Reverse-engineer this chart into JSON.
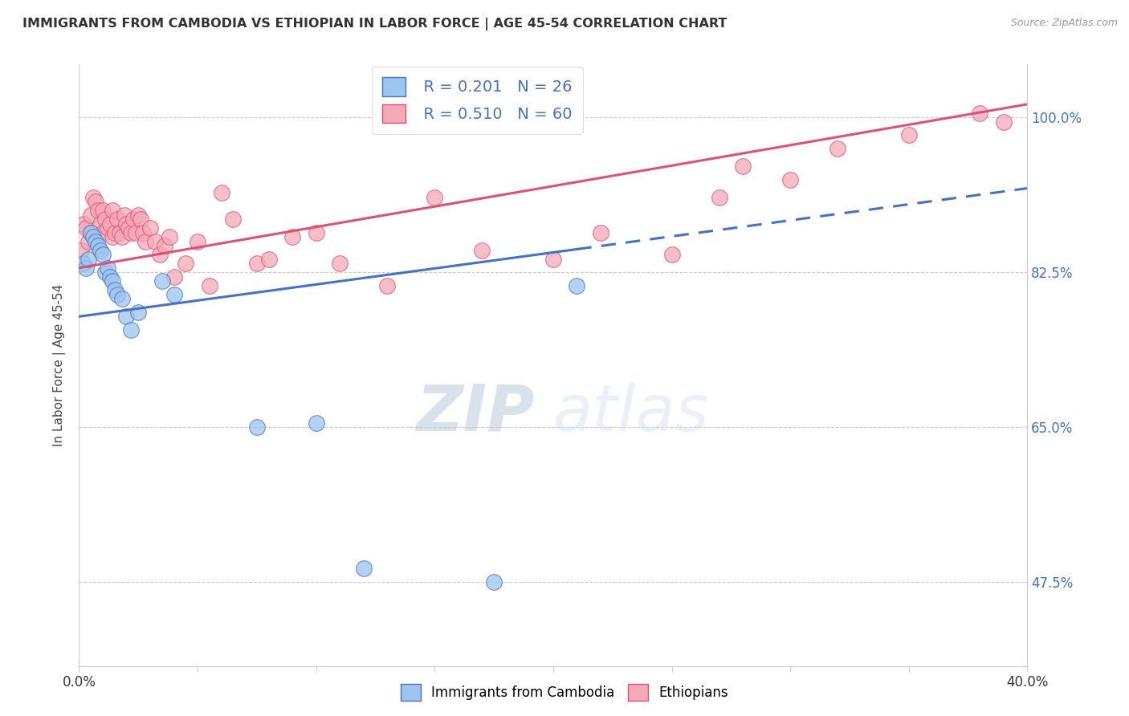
{
  "title": "IMMIGRANTS FROM CAMBODIA VS ETHIOPIAN IN LABOR FORCE | AGE 45-54 CORRELATION CHART",
  "source": "Source: ZipAtlas.com",
  "ylabel": "In Labor Force | Age 45-54",
  "yticks": [
    100.0,
    82.5,
    65.0,
    47.5
  ],
  "xlim": [
    0.0,
    40.0
  ],
  "ylim": [
    38.0,
    106.0
  ],
  "cambodia_R": 0.201,
  "cambodia_N": 26,
  "ethiopian_R": 0.51,
  "ethiopian_N": 60,
  "cambodia_color": "#9CC4EE",
  "ethiopian_color": "#F4A8B8",
  "cambodia_line_color": "#4472C4",
  "ethiopian_line_color": "#E05070",
  "background_color": "#FFFFFF",
  "watermark_zip": "ZIP",
  "watermark_atlas": "atlas",
  "cam_trend_x0": 0.0,
  "cam_trend_y0": 77.5,
  "cam_trend_x1": 40.0,
  "cam_trend_y1": 92.0,
  "cam_solid_end": 21.0,
  "eth_trend_x0": 0.0,
  "eth_trend_y0": 83.0,
  "eth_trend_x1": 40.0,
  "eth_trend_y1": 101.5,
  "cambodia_x": [
    0.2,
    0.3,
    0.4,
    0.5,
    0.6,
    0.7,
    0.8,
    0.9,
    1.0,
    1.1,
    1.2,
    1.3,
    1.4,
    1.5,
    1.6,
    1.8,
    2.0,
    2.2,
    2.5,
    3.5,
    4.0,
    7.5,
    10.0,
    12.0,
    17.5,
    21.0
  ],
  "cambodia_y": [
    83.5,
    83.0,
    84.0,
    87.0,
    86.5,
    86.0,
    85.5,
    85.0,
    84.5,
    82.5,
    83.0,
    82.0,
    81.5,
    80.5,
    80.0,
    79.5,
    77.5,
    76.0,
    78.0,
    81.5,
    80.0,
    65.0,
    65.5,
    49.0,
    47.5,
    81.0
  ],
  "ethiopian_x": [
    0.1,
    0.2,
    0.3,
    0.4,
    0.5,
    0.5,
    0.6,
    0.7,
    0.8,
    0.9,
    1.0,
    1.0,
    1.1,
    1.2,
    1.3,
    1.4,
    1.4,
    1.5,
    1.6,
    1.7,
    1.8,
    1.9,
    2.0,
    2.1,
    2.2,
    2.3,
    2.4,
    2.5,
    2.6,
    2.7,
    2.8,
    3.0,
    3.2,
    3.4,
    3.6,
    3.8,
    4.0,
    4.5,
    5.0,
    5.5,
    6.0,
    6.5,
    7.5,
    8.0,
    9.0,
    10.0,
    11.0,
    13.0,
    15.0,
    17.0,
    20.0,
    22.0,
    25.0,
    27.0,
    28.0,
    30.0,
    32.0,
    35.0,
    38.0,
    39.0
  ],
  "ethiopian_y": [
    85.0,
    88.0,
    87.5,
    86.0,
    89.0,
    87.0,
    91.0,
    90.5,
    89.5,
    88.0,
    89.5,
    87.0,
    88.5,
    87.5,
    88.0,
    86.5,
    89.5,
    87.0,
    88.5,
    87.0,
    86.5,
    89.0,
    88.0,
    87.5,
    87.0,
    88.5,
    87.0,
    89.0,
    88.5,
    87.0,
    86.0,
    87.5,
    86.0,
    84.5,
    85.5,
    86.5,
    82.0,
    83.5,
    86.0,
    81.0,
    91.5,
    88.5,
    83.5,
    84.0,
    86.5,
    87.0,
    83.5,
    81.0,
    91.0,
    85.0,
    84.0,
    87.0,
    84.5,
    91.0,
    94.5,
    93.0,
    96.5,
    98.0,
    100.5,
    99.5
  ]
}
